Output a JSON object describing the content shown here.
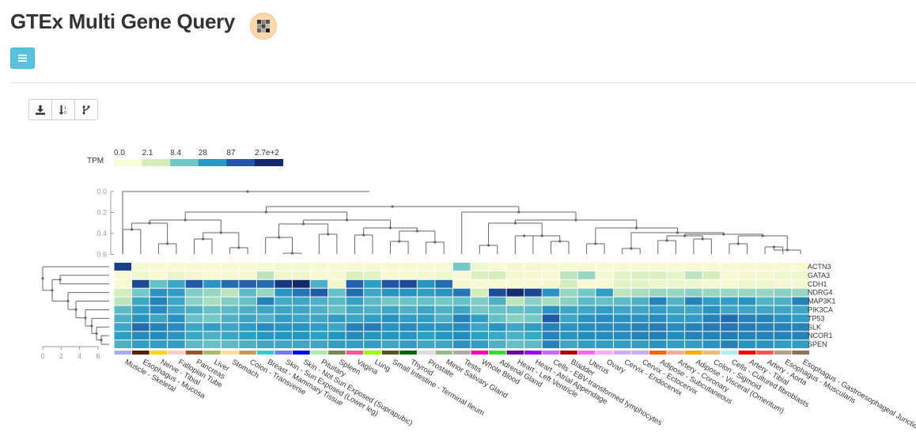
{
  "page": {
    "title": "GTEx Multi Gene Query",
    "menu_icon": "hamburger-icon"
  },
  "toolbar": {
    "buttons": [
      {
        "icon": "download-icon",
        "label": "Download"
      },
      {
        "icon": "sort-icon",
        "label": "Sort"
      },
      {
        "icon": "cluster-icon",
        "label": "Cluster"
      }
    ]
  },
  "chart_data": {
    "type": "heatmap",
    "legend": {
      "title": "TPM",
      "ticks": [
        "0.0",
        "2.1",
        "8.4",
        "28",
        "87",
        "2.7e+2"
      ],
      "colors": [
        "#fcfbd7",
        "#d4edb9",
        "#70c7c6",
        "#2a97c4",
        "#2255a5",
        "#132a6b"
      ]
    },
    "col_dendrogram_axis": [
      "0.0",
      "0.2",
      "0.4",
      "0.6"
    ],
    "row_dendrogram_axis": [
      "0",
      "2",
      "4",
      "6"
    ],
    "genes": [
      "ACTN3",
      "GATA3",
      "CDH1",
      "NDRG4",
      "MAP3K1",
      "PIK3CA",
      "TP53",
      "SLK",
      "NCOR1",
      "SPEN"
    ],
    "tissues": [
      "Muscle - Skeletal",
      "Esophagus - Mucosa",
      "Nerve - Tibial",
      "Fallopian Tube",
      "Pancreas",
      "Liver",
      "Stomach",
      "Colon - Transverse",
      "Breast - Mammary Tissue",
      "Skin - Sun Exposed (Lower leg)",
      "Skin - Not Sun Exposed (Suprapubic)",
      "Pituitary",
      "Spleen",
      "Vagina",
      "Lung",
      "Small Intestine - Terminal Ileum",
      "Thyroid",
      "Prostate",
      "Minor Salivary Gland",
      "Testis",
      "Whole Blood",
      "Adrenal Gland",
      "Heart - Left Ventricle",
      "Heart - Atrial Appendage",
      "Cells - EBV-transformed lymphocytes",
      "Bladder",
      "Uterus",
      "Ovary",
      "Cervix - Endocervix",
      "Cervix - Ectocervix",
      "Adipose - Subcutaneous",
      "Artery - Coronary",
      "Adipose - Visceral (Omentum)",
      "Colon - Sigmoid",
      "Cells - Cultured fibroblasts",
      "Artery - Tibial",
      "Artery - Aorta",
      "Esophagus - Muscularis",
      "Esophagus - Gastroesophageal Junction"
    ],
    "tissue_colors": [
      "#aaaaff",
      "#552200",
      "#ffd700",
      "#ffcccc",
      "#995522",
      "#aabb66",
      "#ffdd99",
      "#cc9955",
      "#33cccc",
      "#7777ff",
      "#0000ff",
      "#aaeeaa",
      "#778855",
      "#ff5599",
      "#99ff00",
      "#555522",
      "#006600",
      "#dddddd",
      "#99bb88",
      "#aaaaaa",
      "#ff00bb",
      "#33dd33",
      "#660099",
      "#9900ff",
      "#cc66ff",
      "#aa0000",
      "#ff66ff",
      "#ffaaff",
      "#ccaaff",
      "#ccaaff",
      "#ff6600",
      "#ffaa99",
      "#ffaa00",
      "#eebb77",
      "#aaeeff",
      "#ff0000",
      "#ff5555",
      "#bb9988",
      "#8b7355"
    ],
    "values_tpm": [
      [
        150,
        0.3,
        0.2,
        0.2,
        0.2,
        0.1,
        0.2,
        0.2,
        0.2,
        0.3,
        0.3,
        0.2,
        0.2,
        0.2,
        0.2,
        0.2,
        0.2,
        0.2,
        0.2,
        8,
        0.4,
        0.2,
        0.3,
        0.3,
        0.2,
        0.2,
        0.2,
        0.2,
        0.2,
        0.2,
        0.2,
        0.2,
        0.2,
        0.2,
        0.2,
        0.2,
        0.2,
        0.2,
        0.2
      ],
      [
        0.2,
        0.5,
        0.2,
        0.7,
        0.3,
        0.2,
        0.2,
        0.3,
        3,
        0.5,
        0.5,
        0.2,
        0.2,
        1.5,
        1,
        0.2,
        0.2,
        0.3,
        0.5,
        0.2,
        1.5,
        2,
        0.3,
        0.3,
        0.2,
        3,
        5,
        0.3,
        1,
        1.5,
        1.5,
        0.8,
        3,
        2,
        0.2,
        0.3,
        0.3,
        0.5,
        0.5
      ],
      [
        0.2,
        120,
        10,
        20,
        80,
        30,
        60,
        70,
        60,
        180,
        300,
        15,
        0.5,
        70,
        25,
        90,
        120,
        30,
        60,
        0.3,
        0.2,
        0.2,
        0.2,
        0.2,
        0.3,
        2,
        0.2,
        0.2,
        1,
        1,
        0.5,
        0.5,
        0.5,
        0.3,
        0.2,
        0.5,
        0.5,
        0.3,
        0.3
      ],
      [
        2,
        8,
        30,
        25,
        7,
        5,
        3,
        12,
        5,
        30,
        50,
        80,
        10,
        60,
        20,
        30,
        30,
        25,
        30,
        50,
        2,
        120,
        250,
        130,
        30,
        5,
        8,
        25,
        3,
        4,
        5,
        5,
        6,
        5,
        5,
        5,
        5,
        6,
        5
      ],
      [
        3,
        20,
        40,
        20,
        6,
        4,
        7,
        10,
        40,
        18,
        20,
        15,
        12,
        22,
        12,
        8,
        9,
        10,
        8,
        10,
        7,
        15,
        3,
        6,
        4,
        6,
        12,
        10,
        12,
        15,
        40,
        14,
        40,
        25,
        25,
        30,
        14,
        15,
        40
      ],
      [
        12,
        25,
        35,
        20,
        15,
        10,
        12,
        15,
        20,
        20,
        20,
        15,
        10,
        18,
        15,
        20,
        15,
        20,
        15,
        20,
        8,
        10,
        10,
        12,
        30,
        20,
        20,
        25,
        20,
        20,
        25,
        20,
        20,
        30,
        20,
        20,
        20,
        20,
        20
      ],
      [
        15,
        30,
        20,
        30,
        10,
        8,
        15,
        20,
        15,
        25,
        20,
        20,
        25,
        20,
        25,
        30,
        25,
        25,
        15,
        40,
        25,
        10,
        6,
        8,
        80,
        20,
        30,
        35,
        30,
        30,
        35,
        25,
        25,
        40,
        60,
        40,
        40,
        30,
        25
      ],
      [
        20,
        60,
        40,
        35,
        20,
        25,
        20,
        25,
        35,
        30,
        30,
        25,
        20,
        40,
        45,
        30,
        35,
        30,
        30,
        35,
        20,
        30,
        20,
        25,
        40,
        30,
        35,
        35,
        35,
        40,
        45,
        35,
        40,
        45,
        50,
        45,
        40,
        40,
        40
      ],
      [
        25,
        35,
        35,
        30,
        20,
        15,
        20,
        25,
        30,
        30,
        30,
        25,
        30,
        35,
        30,
        30,
        30,
        25,
        30,
        35,
        25,
        20,
        15,
        20,
        40,
        30,
        35,
        35,
        35,
        40,
        45,
        35,
        40,
        40,
        45,
        40,
        40,
        40,
        40
      ],
      [
        15,
        25,
        25,
        25,
        12,
        10,
        12,
        15,
        20,
        20,
        20,
        20,
        25,
        25,
        25,
        20,
        25,
        20,
        20,
        30,
        25,
        15,
        10,
        12,
        40,
        20,
        25,
        25,
        25,
        25,
        30,
        25,
        25,
        30,
        40,
        30,
        30,
        25,
        25
      ]
    ]
  }
}
